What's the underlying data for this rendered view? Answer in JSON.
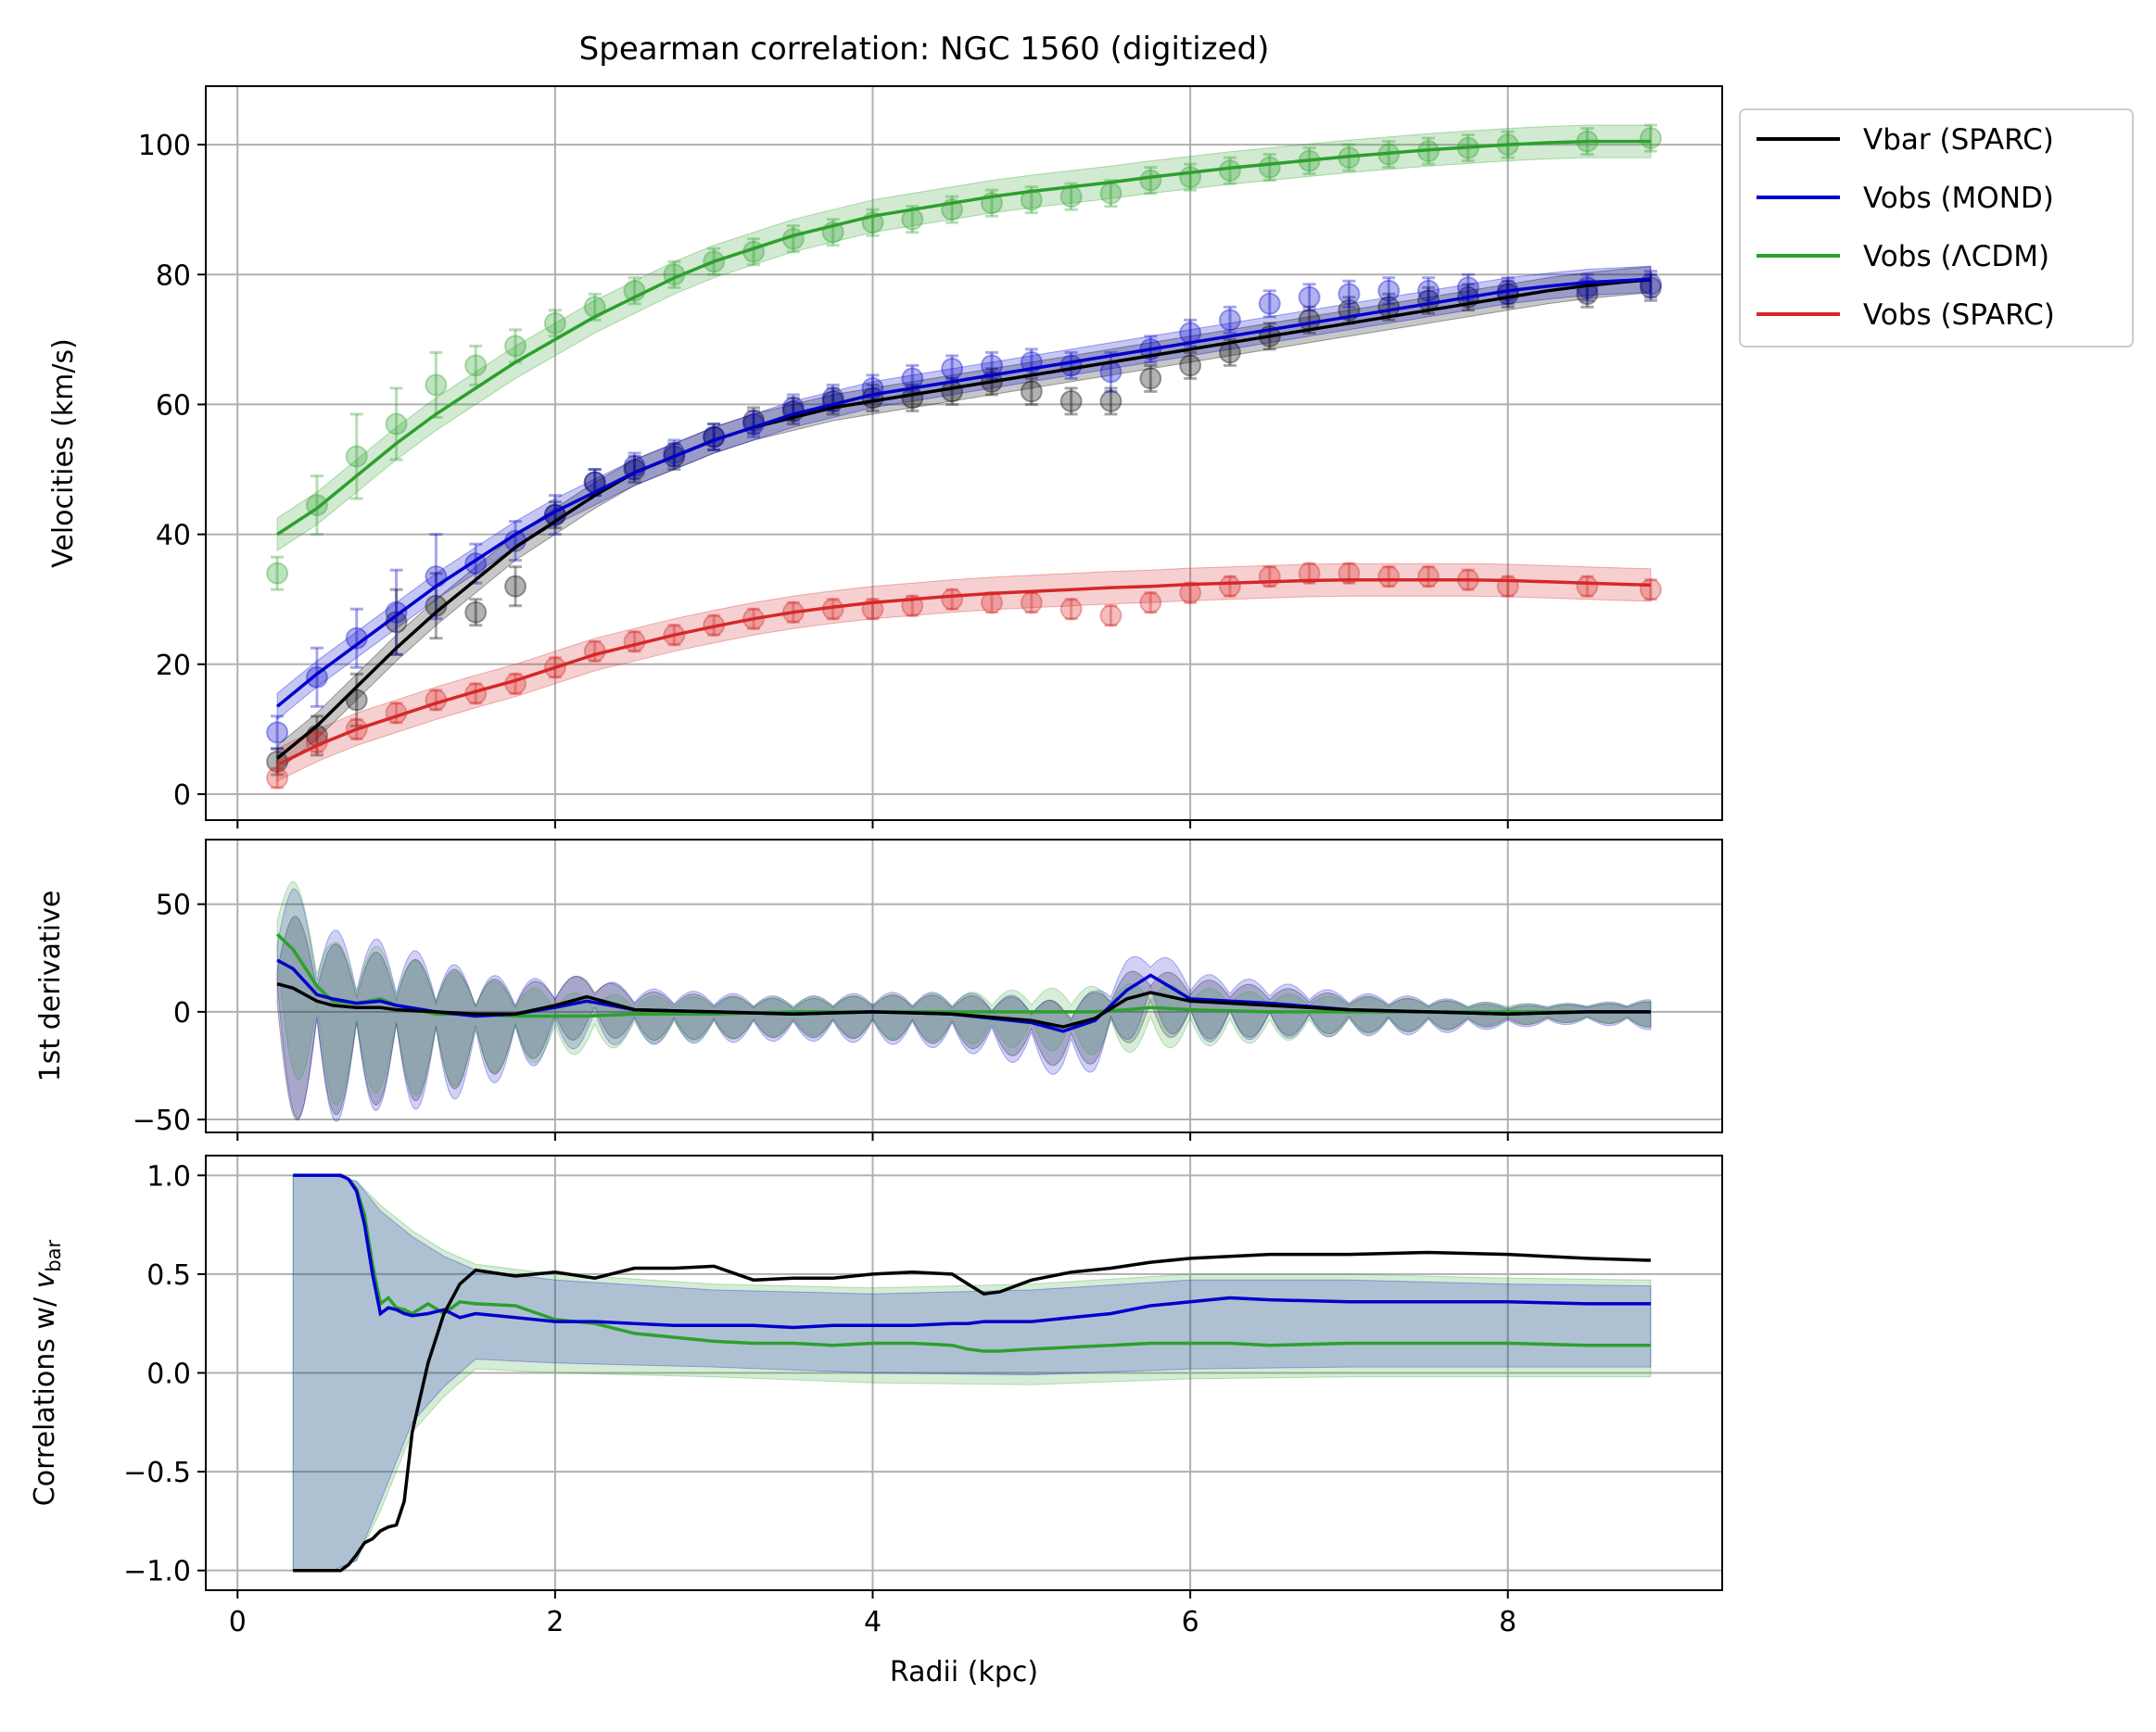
{
  "title": "Spearman correlation: NGC 1560 (digitized)",
  "colors": {
    "black": "#000000",
    "blue": "#0000cc",
    "green": "#2ca02c",
    "red": "#d62728",
    "grid": "#b0b0b0"
  },
  "legend": {
    "placement": "outside upper right",
    "entries": [
      {
        "label": "Vbar (SPARC)",
        "color": "#000000"
      },
      {
        "label": "Vobs (MOND)",
        "color": "#0000cc"
      },
      {
        "label": "Vobs (ΛCDM)",
        "color": "#2ca02c"
      },
      {
        "label": "Vobs (SPARC)",
        "color": "#d62728"
      }
    ]
  },
  "chart_data": [
    {
      "type": "line",
      "panel": "velocities",
      "ylabel": "Velocities (km/s)",
      "xlim": [
        -0.2,
        9.35
      ],
      "ylim": [
        -4,
        109
      ],
      "xticks": [
        0,
        2,
        4,
        6,
        8
      ],
      "yticks": [
        0,
        20,
        40,
        60,
        80,
        100
      ],
      "ytick_labels": [
        "0",
        "20",
        "40",
        "60",
        "80",
        "100"
      ],
      "grid": true,
      "curve_x": [
        0.25,
        0.5,
        0.75,
        1.0,
        1.25,
        1.5,
        1.75,
        2.0,
        2.25,
        2.5,
        2.75,
        3.0,
        3.25,
        3.5,
        3.75,
        4.0,
        4.25,
        4.5,
        4.75,
        5.0,
        5.25,
        5.5,
        5.75,
        6.0,
        6.25,
        6.5,
        6.75,
        7.0,
        7.25,
        7.5,
        7.75,
        8.0,
        8.25,
        8.5,
        8.75,
        8.9
      ],
      "series": [
        {
          "name": "Vbar (SPARC)",
          "color": "#000000",
          "curve": [
            5.5,
            10.5,
            16.5,
            22.5,
            28,
            33,
            38,
            42,
            46,
            49.5,
            52,
            54.5,
            56.5,
            58,
            59.5,
            60.5,
            61.5,
            62.5,
            63.5,
            64.5,
            65.5,
            66.5,
            67.5,
            68.5,
            69.5,
            70.5,
            71.5,
            72.5,
            73.5,
            74.5,
            75.5,
            76.5,
            77.5,
            78.3,
            78.9,
            79.2
          ],
          "band": 2,
          "points_x": [
            0.25,
            0.5,
            0.75,
            1.0,
            1.25,
            1.5,
            1.75,
            2.0,
            2.25,
            2.5,
            2.75,
            3.0,
            3.25,
            3.5,
            3.75,
            4.0,
            4.25,
            4.5,
            4.75,
            5.0,
            5.25,
            5.5,
            5.75,
            6.0,
            6.25,
            6.5,
            6.75,
            7.0,
            7.25,
            7.5,
            7.75,
            8.0,
            8.5,
            8.9
          ],
          "points_y": [
            5,
            9,
            14.5,
            26.5,
            29,
            28,
            32,
            43,
            48,
            50,
            52,
            55,
            57.5,
            59,
            60.5,
            61,
            61,
            62,
            63.5,
            62,
            60.5,
            60.5,
            64,
            66,
            68,
            70.5,
            73,
            74.5,
            75,
            76,
            76.5,
            77,
            77,
            78
          ],
          "errors": [
            2,
            3,
            4,
            5,
            5,
            2,
            3,
            2,
            2,
            2,
            2,
            2,
            2,
            2,
            2,
            2,
            2,
            2,
            2,
            2,
            2,
            2,
            2,
            2,
            2,
            2,
            2,
            2,
            2,
            2,
            2,
            2,
            2,
            2
          ]
        },
        {
          "name": "Vobs (MOND)",
          "color": "#0000cc",
          "curve": [
            13.5,
            18.5,
            23,
            27.5,
            32,
            36,
            40,
            43.5,
            46.5,
            49.5,
            52,
            54.5,
            56.5,
            58.5,
            60,
            61.5,
            62.5,
            63.5,
            64.5,
            65.5,
            66.5,
            67.5,
            68.5,
            69.5,
            70.5,
            71.5,
            72.5,
            73.5,
            74.5,
            75.5,
            76.5,
            77.5,
            78.2,
            78.8,
            79.1,
            79.3
          ],
          "band": 2,
          "points_x": [
            0.25,
            0.5,
            0.75,
            1.0,
            1.25,
            1.5,
            1.75,
            2.0,
            2.25,
            2.5,
            2.75,
            3.0,
            3.25,
            3.5,
            3.75,
            4.0,
            4.25,
            4.5,
            4.75,
            5.0,
            5.25,
            5.5,
            5.75,
            6.0,
            6.25,
            6.5,
            6.75,
            7.0,
            7.25,
            7.5,
            7.75,
            8.0,
            8.5,
            8.9
          ],
          "points_y": [
            9.5,
            18,
            24,
            28,
            33.5,
            35.5,
            39,
            43,
            48,
            50.5,
            52.5,
            55,
            57,
            59.5,
            61,
            62.5,
            64,
            65.5,
            66,
            66.5,
            66,
            65,
            68.5,
            71,
            73,
            75.5,
            76.5,
            77,
            77.5,
            77.5,
            78,
            77.5,
            78,
            78.5
          ],
          "errors": [
            2.5,
            4.5,
            4.5,
            6.5,
            6.5,
            3,
            3,
            3,
            2,
            2,
            2,
            2,
            2,
            2,
            2,
            2,
            2,
            2,
            2,
            2,
            2,
            3,
            2,
            2,
            2,
            2,
            2,
            2,
            2,
            2,
            2,
            2,
            2,
            2
          ]
        },
        {
          "name": "Vobs (ΛCDM)",
          "color": "#2ca02c",
          "curve": [
            40,
            44,
            49,
            54,
            58.5,
            62.5,
            66.5,
            70,
            73.5,
            76.5,
            79.5,
            82,
            84,
            86,
            87.5,
            89,
            90,
            91,
            92,
            92.8,
            93.5,
            94.2,
            95,
            95.7,
            96.4,
            97,
            97.6,
            98.2,
            98.7,
            99.2,
            99.6,
            100,
            100.3,
            100.5,
            100.5,
            100.5
          ],
          "band": 2.5,
          "points_x": [
            0.25,
            0.5,
            0.75,
            1.0,
            1.25,
            1.5,
            1.75,
            2.0,
            2.25,
            2.5,
            2.75,
            3.0,
            3.25,
            3.5,
            3.75,
            4.0,
            4.25,
            4.5,
            4.75,
            5.0,
            5.25,
            5.5,
            5.75,
            6.0,
            6.25,
            6.5,
            6.75,
            7.0,
            7.25,
            7.5,
            7.75,
            8.0,
            8.5,
            8.9
          ],
          "points_y": [
            34,
            44.5,
            52,
            57,
            63,
            66,
            69,
            72.5,
            75,
            77.5,
            80,
            82,
            83.5,
            85.5,
            86.5,
            88,
            88.5,
            90,
            91,
            91.5,
            92,
            92.5,
            94.5,
            95,
            96,
            96.5,
            97.5,
            98,
            98.5,
            99,
            99.5,
            100,
            100.5,
            101
          ],
          "errors": [
            2.5,
            4.5,
            6.5,
            5.5,
            5,
            3,
            2.5,
            2,
            2,
            2,
            2,
            2,
            2,
            2,
            2,
            2,
            2,
            2,
            2,
            2,
            2,
            2,
            2,
            2,
            2,
            2,
            2,
            2,
            2,
            2,
            2,
            2,
            2,
            2
          ]
        },
        {
          "name": "Vobs (SPARC)",
          "color": "#d62728",
          "curve": [
            4.5,
            7.5,
            10,
            12,
            14,
            15.8,
            17.5,
            19.5,
            21.5,
            23,
            24.5,
            25.8,
            27,
            28,
            28.8,
            29.5,
            30,
            30.5,
            30.9,
            31.2,
            31.5,
            31.8,
            32,
            32.3,
            32.5,
            32.7,
            32.9,
            33,
            33,
            33,
            33,
            32.9,
            32.7,
            32.5,
            32.3,
            32.2
          ],
          "band": 2.5,
          "points_x": [
            0.25,
            0.5,
            0.75,
            1.0,
            1.25,
            1.5,
            1.75,
            2.0,
            2.25,
            2.5,
            2.75,
            3.0,
            3.25,
            3.5,
            3.75,
            4.0,
            4.25,
            4.5,
            4.75,
            5.0,
            5.25,
            5.5,
            5.75,
            6.0,
            6.25,
            6.5,
            6.75,
            7.0,
            7.25,
            7.5,
            7.75,
            8.0,
            8.5,
            8.9
          ],
          "points_y": [
            2.5,
            8,
            10,
            12.5,
            14.5,
            15.5,
            17,
            19.5,
            22,
            23.5,
            24.5,
            26,
            27,
            28,
            28.5,
            28.5,
            29,
            30,
            29.5,
            29.5,
            28.5,
            27.5,
            29.5,
            31,
            32,
            33.5,
            34,
            34,
            33.5,
            33.5,
            33,
            32,
            32,
            31.5
          ],
          "errors": [
            1.5,
            1.5,
            1.5,
            1.5,
            1.5,
            1.5,
            1.5,
            1.5,
            1.5,
            1.5,
            1.5,
            1.5,
            1.5,
            1.5,
            1.5,
            1.5,
            1.5,
            1.5,
            1.5,
            1.5,
            1.5,
            1.5,
            1.5,
            1.5,
            1.5,
            1.5,
            1.5,
            1.5,
            1.5,
            1.5,
            1.5,
            1.5,
            1.5,
            1.5
          ]
        }
      ]
    },
    {
      "type": "line",
      "panel": "derivative",
      "ylabel": "1st derivative",
      "xlim": [
        -0.2,
        9.35
      ],
      "ylim": [
        -56,
        80
      ],
      "xticks": [
        0,
        2,
        4,
        6,
        8
      ],
      "yticks": [
        -50,
        0,
        50
      ],
      "ytick_labels": [
        "−50",
        "0",
        "50"
      ],
      "grid": true,
      "x": [
        0.25,
        0.35,
        0.5,
        0.6,
        0.75,
        0.9,
        1.0,
        1.25,
        1.5,
        1.75,
        2.0,
        2.2,
        2.5,
        3.0,
        3.5,
        4.0,
        4.5,
        5.0,
        5.2,
        5.4,
        5.6,
        5.75,
        6.0,
        6.5,
        7.0,
        7.5,
        8.0,
        8.5,
        8.9
      ],
      "series": [
        {
          "name": "Vbar (SPARC)",
          "color": "#000000",
          "values": [
            13,
            11,
            5,
            3,
            2,
            2,
            1,
            0,
            -1,
            -1,
            3,
            7,
            1,
            0,
            -1,
            0,
            -1,
            -4,
            -7,
            -3,
            6,
            9,
            5,
            3,
            1,
            0,
            -1,
            0,
            0
          ],
          "band": 6
        },
        {
          "name": "Vobs (MOND)",
          "color": "#0000cc",
          "values": [
            24,
            20,
            8,
            6,
            4,
            5,
            3,
            0,
            -2,
            -1,
            2,
            5,
            1,
            0,
            -1,
            0,
            -1,
            -5,
            -9,
            -4,
            10,
            17,
            6,
            4,
            1,
            0,
            -1,
            0,
            0
          ],
          "band": 8
        },
        {
          "name": "Vobs (ΛCDM)",
          "color": "#2ca02c",
          "values": [
            36,
            29,
            12,
            5,
            4,
            6,
            3,
            -1,
            -1,
            -2,
            -2,
            -2,
            -1,
            -1,
            0,
            0,
            0,
            0,
            0,
            0,
            1,
            2,
            1,
            0,
            0,
            0,
            0,
            0,
            0
          ],
          "band": 7
        }
      ],
      "envelope_x": [
        0.25,
        0.45,
        0.6,
        0.75,
        0.9,
        1.1,
        1.3,
        1.5,
        1.75,
        2.0,
        2.5,
        3.0,
        3.5,
        4.0,
        4.5,
        5.0,
        5.5,
        6.0,
        6.5,
        7.0,
        7.5,
        8.0,
        8.5,
        8.9
      ],
      "envelope_amplitude": [
        70,
        62,
        55,
        50,
        48,
        45,
        40,
        32,
        26,
        20,
        14,
        12,
        10,
        12,
        14,
        18,
        22,
        18,
        14,
        10,
        8,
        4,
        3,
        6
      ]
    },
    {
      "type": "line",
      "panel": "correlations",
      "ylabel": "Correlations w/ v_bar",
      "xlabel": "Radii (kpc)",
      "xlim": [
        -0.2,
        9.35
      ],
      "ylim": [
        -1.1,
        1.1
      ],
      "xticks": [
        0,
        2,
        4,
        6,
        8
      ],
      "xtick_labels": [
        "0",
        "2",
        "4",
        "6",
        "8"
      ],
      "yticks": [
        -1.0,
        -0.5,
        0.0,
        0.5,
        1.0
      ],
      "ytick_labels": [
        "−1.0",
        "−0.5",
        "0.0",
        "0.5",
        "1.0"
      ],
      "grid": true,
      "x": [
        0.35,
        0.5,
        0.65,
        0.7,
        0.75,
        0.8,
        0.85,
        0.9,
        0.95,
        1.0,
        1.05,
        1.1,
        1.2,
        1.3,
        1.4,
        1.5,
        1.75,
        2.0,
        2.25,
        2.5,
        2.75,
        3.0,
        3.25,
        3.5,
        3.75,
        4.0,
        4.25,
        4.5,
        4.6,
        4.7,
        4.8,
        5.0,
        5.25,
        5.5,
        5.75,
        6.0,
        6.25,
        6.5,
        7.0,
        7.5,
        8.0,
        8.5,
        8.9
      ],
      "series": [
        {
          "name": "Vbar (SPARC)",
          "color": "#000000",
          "values": [
            -1.0,
            -1.0,
            -1.0,
            -0.97,
            -0.92,
            -0.86,
            -0.84,
            -0.8,
            -0.78,
            -0.77,
            -0.65,
            -0.3,
            0.05,
            0.3,
            0.45,
            0.52,
            0.49,
            0.51,
            0.48,
            0.53,
            0.53,
            0.54,
            0.47,
            0.48,
            0.48,
            0.5,
            0.51,
            0.5,
            0.45,
            0.4,
            0.41,
            0.47,
            0.51,
            0.53,
            0.56,
            0.58,
            0.59,
            0.6,
            0.6,
            0.61,
            0.6,
            0.58,
            0.57
          ]
        },
        {
          "name": "Vobs (MOND)",
          "color": "#0000cc",
          "values": [
            1.0,
            1.0,
            1.0,
            0.98,
            0.92,
            0.75,
            0.5,
            0.3,
            0.33,
            0.32,
            0.3,
            0.29,
            0.3,
            0.32,
            0.28,
            0.3,
            0.28,
            0.26,
            0.26,
            0.25,
            0.24,
            0.24,
            0.24,
            0.23,
            0.24,
            0.24,
            0.24,
            0.25,
            0.25,
            0.26,
            0.26,
            0.26,
            0.28,
            0.3,
            0.34,
            0.36,
            0.38,
            0.37,
            0.36,
            0.36,
            0.36,
            0.35,
            0.35
          ]
        },
        {
          "name": "Vobs (ΛCDM)",
          "color": "#2ca02c",
          "values": [
            1.0,
            1.0,
            1.0,
            0.98,
            0.93,
            0.8,
            0.55,
            0.35,
            0.38,
            0.33,
            0.32,
            0.3,
            0.35,
            0.3,
            0.36,
            0.35,
            0.34,
            0.27,
            0.25,
            0.2,
            0.18,
            0.16,
            0.15,
            0.15,
            0.14,
            0.15,
            0.15,
            0.14,
            0.12,
            0.11,
            0.11,
            0.12,
            0.13,
            0.14,
            0.15,
            0.15,
            0.15,
            0.14,
            0.15,
            0.15,
            0.15,
            0.14,
            0.14
          ]
        }
      ],
      "band_x": [
        0.35,
        0.6,
        0.75,
        0.9,
        1.1,
        1.3,
        1.5,
        2.0,
        3.0,
        4.0,
        5.0,
        6.0,
        7.0,
        8.0,
        8.9
      ],
      "band_upper": [
        1.0,
        1.0,
        0.97,
        0.85,
        0.72,
        0.62,
        0.55,
        0.5,
        0.45,
        0.43,
        0.45,
        0.5,
        0.5,
        0.48,
        0.47
      ],
      "band_lower": [
        -1.0,
        -1.0,
        -0.95,
        -0.7,
        -0.3,
        -0.12,
        0.02,
        0.0,
        -0.02,
        -0.05,
        -0.06,
        -0.03,
        -0.02,
        -0.02,
        -0.02
      ]
    }
  ]
}
